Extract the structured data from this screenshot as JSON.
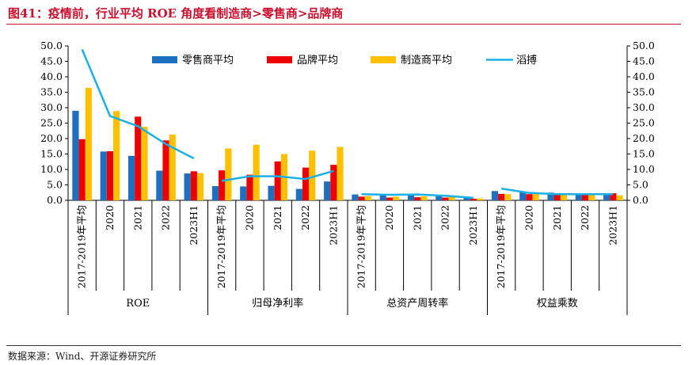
{
  "header": {
    "title": "图41：疫情前，行业平均 ROE 角度看制造商>零售商>品牌商"
  },
  "footer": {
    "source": "数据来源：Wind、开源证券研究所"
  },
  "colors": {
    "retailer": "#1f6fc0",
    "brand": "#ee0000",
    "manufacturer": "#ffc000",
    "line": "#1ab0e8",
    "title": "#c8102e"
  },
  "chart_data": {
    "type": "bar",
    "title": "",
    "xlabel": "",
    "ylabel": "",
    "ylim": [
      0,
      50
    ],
    "y_ticks": [
      "0.0",
      "5.0",
      "10.0",
      "15.0",
      "20.0",
      "25.0",
      "30.0",
      "35.0",
      "40.0",
      "45.0",
      "50.0"
    ],
    "secondary_ylim": [
      0,
      50
    ],
    "legend_position": "top",
    "grid": false,
    "groups": [
      {
        "name": "ROE",
        "categories": [
          "2017-2019年平均",
          "2020",
          "2021",
          "2022",
          "2023H1"
        ]
      },
      {
        "name": "归母净利率",
        "categories": [
          "2017-2019年平均",
          "2020",
          "2021",
          "2022",
          "2023H1"
        ]
      },
      {
        "name": "总资产周转率",
        "categories": [
          "2017-2019年平均",
          "2020",
          "2021",
          "2022",
          "2023H1"
        ]
      },
      {
        "name": "权益乘数",
        "categories": [
          "2017-2019年平均",
          "2020",
          "2021",
          "2022",
          "2023H1"
        ]
      }
    ],
    "series": [
      {
        "name": "零售商平均",
        "type": "bar",
        "color": "#1f6fc0",
        "values": [
          29.0,
          15.8,
          14.4,
          9.6,
          8.7,
          4.6,
          4.5,
          4.7,
          3.7,
          6.1,
          1.9,
          1.6,
          1.7,
          1.6,
          1.2,
          3.0,
          2.6,
          2.5,
          2.3,
          2.3
        ]
      },
      {
        "name": "品牌平均",
        "type": "bar",
        "color": "#ee0000",
        "values": [
          19.8,
          15.9,
          27.1,
          19.4,
          9.4,
          9.7,
          8.3,
          12.6,
          10.6,
          11.5,
          1.2,
          0.9,
          1.0,
          0.9,
          0.5,
          2.1,
          2.0,
          2.1,
          2.0,
          2.3
        ]
      },
      {
        "name": "制造商平均",
        "type": "bar",
        "color": "#ffc000",
        "values": [
          36.4,
          28.9,
          23.8,
          21.3,
          8.8,
          16.8,
          18.0,
          15.0,
          16.1,
          17.3,
          1.4,
          1.2,
          1.3,
          1.3,
          0.6,
          2.0,
          2.0,
          1.8,
          1.7,
          1.6
        ]
      },
      {
        "name": "滔搏",
        "type": "line",
        "axis": "secondary",
        "color": "#1ab0e8",
        "values_by_group": [
          [
            48.9,
            27.3,
            24.0,
            18.2,
            13.6
          ],
          [
            6.3,
            7.8,
            7.8,
            6.9,
            9.5
          ],
          [
            2.0,
            1.8,
            1.9,
            1.5,
            0.8
          ],
          [
            3.8,
            2.4,
            2.0,
            2.0,
            2.0
          ]
        ]
      }
    ]
  }
}
